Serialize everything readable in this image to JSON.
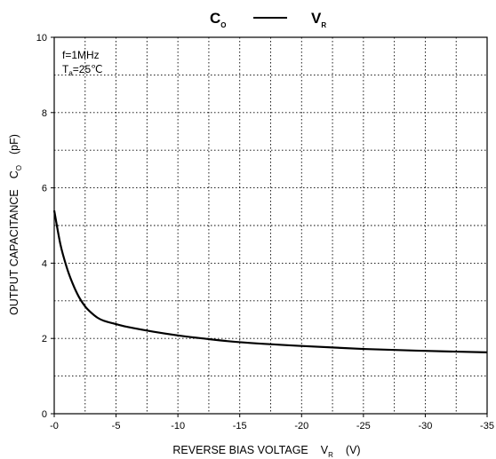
{
  "chart_data": {
    "type": "line",
    "title": {
      "left_symbol": "C",
      "left_subscript": "O",
      "right_symbol": "V",
      "right_subscript": "R"
    },
    "xlabel": {
      "text": "REVERSE BIAS VOLTAGE",
      "symbol": "V",
      "subscript": "R",
      "unit": "(V)"
    },
    "ylabel": {
      "text": "OUTPUT CAPACITANCE",
      "symbol": "C",
      "subscript": "O",
      "unit": "(pF)"
    },
    "annotations": {
      "frequency": "f=1MHz",
      "temp_symbol": "T",
      "temp_subscript": "a",
      "temp_value": "=25℃"
    },
    "x_ticks": [
      "-0",
      "-5",
      "-10",
      "-15",
      "-20",
      "-25",
      "-30",
      "-35"
    ],
    "y_ticks": [
      "0",
      "2",
      "4",
      "6",
      "8",
      "10"
    ],
    "xlim": [
      0,
      -35
    ],
    "ylim": [
      0,
      10
    ],
    "grid": true,
    "grid_style": "dotted",
    "series": [
      {
        "color": "#000000",
        "x": [
          0,
          -0.5,
          -1,
          -1.5,
          -2,
          -2.5,
          -3,
          -3.5,
          -4,
          -5,
          -6,
          -8,
          -10,
          -12,
          -15,
          -20,
          -25,
          -30,
          -35
        ],
        "y": [
          5.4,
          4.5,
          3.9,
          3.45,
          3.1,
          2.85,
          2.68,
          2.55,
          2.47,
          2.38,
          2.3,
          2.18,
          2.08,
          2.0,
          1.9,
          1.8,
          1.72,
          1.67,
          1.63
        ]
      }
    ]
  }
}
